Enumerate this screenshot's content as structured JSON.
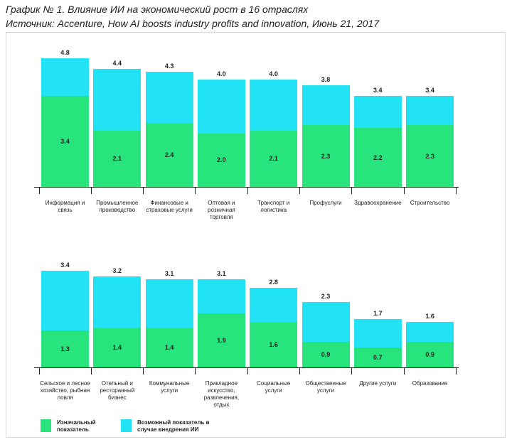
{
  "title": "График № 1. Влияние ИИ на экономический рост в 16 отраслях",
  "subtitle": "Источник: Accenture, How AI boosts industry profits and innovation, Июнь 21, 2017",
  "chart_data": [
    {
      "type": "bar",
      "categories": [
        "Информация и связь",
        "Промышленное производство",
        "Финансовые и страховые услуги",
        "Оптовая и розничная торговля",
        "Транспорт и логистика",
        "Профуслуги",
        "Здравоохранение",
        "Строительство"
      ],
      "series": [
        {
          "name": "Изначальный показатель",
          "color": "#27e57c",
          "values": [
            3.4,
            2.1,
            2.4,
            2.0,
            2.1,
            2.3,
            2.2,
            2.3
          ],
          "value_labels": [
            "3.4",
            "2.1",
            "2.4",
            "2.0",
            "2.1",
            "2.3",
            "2.2",
            "2.3"
          ]
        },
        {
          "name": "Возможный показатель в случае внедрения ИИ",
          "color": "#22e2f6",
          "values": [
            4.8,
            4.4,
            4.3,
            4.0,
            4.0,
            3.8,
            3.4,
            3.4
          ],
          "value_labels": [
            "4.8",
            "4.4",
            "4.3",
            "4.0",
            "4.0",
            "3.8",
            "3.4",
            "3.4"
          ]
        }
      ]
    },
    {
      "type": "bar",
      "categories": [
        "Сельское и лесное хозяйство, рыбная ловля",
        "Отельный и ресторанный бизнес",
        "Коммунальные услуги",
        "Прикладное искусство, развлечения, отдых",
        "Социальные услуги",
        "Общественные услуги",
        "Другие услуги",
        "Образование"
      ],
      "series": [
        {
          "name": "Изначальный показатель",
          "color": "#27e57c",
          "values": [
            1.3,
            1.4,
            1.4,
            1.9,
            1.6,
            0.9,
            0.7,
            0.9
          ],
          "value_labels": [
            "1.3",
            "1.4",
            "1.4",
            "1.9",
            "1.6",
            "0.9",
            "0.7",
            "0.9"
          ]
        },
        {
          "name": "Возможный показатель в случае внедрения ИИ",
          "color": "#22e2f6",
          "values": [
            3.4,
            3.2,
            3.1,
            3.1,
            2.8,
            2.3,
            1.7,
            1.6
          ],
          "value_labels": [
            "3.4",
            "3.2",
            "3.1",
            "3.1",
            "2.8",
            "2.3",
            "1.7",
            "1.6"
          ]
        }
      ]
    }
  ]
}
